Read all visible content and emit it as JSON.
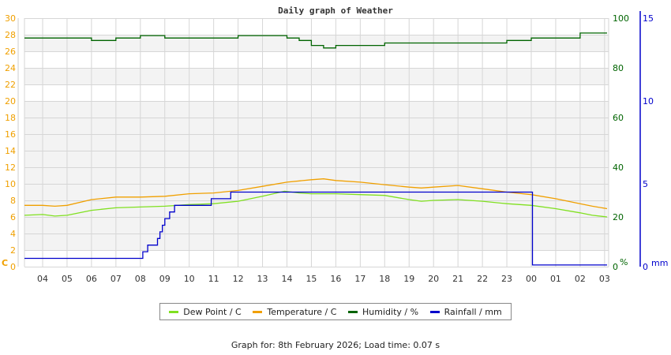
{
  "chart_data": {
    "type": "line",
    "title": "Daily graph of Weather",
    "x_tick_labels": [
      "04",
      "05",
      "06",
      "07",
      "08",
      "09",
      "10",
      "11",
      "12",
      "13",
      "14",
      "15",
      "16",
      "17",
      "18",
      "19",
      "20",
      "21",
      "22",
      "23",
      "00",
      "01",
      "02",
      "03"
    ],
    "axes": {
      "left": {
        "label": "C",
        "ticks": [
          0,
          2,
          4,
          6,
          8,
          10,
          12,
          14,
          16,
          18,
          20,
          22,
          24,
          26,
          28,
          30
        ],
        "range": [
          0,
          30
        ],
        "color": "#f0a000"
      },
      "right_humidity": {
        "label": "%",
        "ticks": [
          0,
          20,
          40,
          60,
          80,
          100
        ],
        "range": [
          0,
          100
        ],
        "color": "#006400"
      },
      "right_rain": {
        "label": "mm",
        "ticks": [
          0,
          5,
          10,
          15
        ],
        "range": [
          0,
          15
        ],
        "color": "#0000cc"
      }
    },
    "grid": true,
    "legend_position": "bottom",
    "series": [
      {
        "name": "Dew Point / C",
        "color": "#80e020",
        "x": [
          3.3,
          4,
          4.5,
          5,
          6,
          7,
          8,
          9,
          10,
          11,
          12,
          13,
          13.9,
          14.5,
          15,
          16,
          17,
          18,
          19,
          19.5,
          20,
          21,
          22,
          23,
          0,
          1,
          2,
          2.5,
          3.3
        ],
        "values": [
          6.2,
          6.3,
          6.1,
          6.2,
          6.8,
          7.1,
          7.2,
          7.3,
          7.5,
          7.6,
          7.9,
          8.5,
          9.1,
          8.9,
          8.8,
          8.8,
          8.7,
          8.6,
          8.1,
          7.9,
          8.0,
          8.1,
          7.9,
          7.6,
          7.4,
          7.0,
          6.5,
          6.2,
          6.0
        ]
      },
      {
        "name": "Temperature / C",
        "color": "#f0a000",
        "x": [
          3.3,
          4,
          4.5,
          5,
          6,
          7,
          8,
          9,
          10,
          11,
          12,
          13,
          14,
          15,
          15.5,
          16,
          17,
          18,
          19,
          19.5,
          20,
          21,
          22,
          23,
          0,
          1,
          2,
          2.5,
          3.3
        ],
        "values": [
          7.4,
          7.4,
          7.3,
          7.4,
          8.1,
          8.4,
          8.4,
          8.5,
          8.8,
          8.9,
          9.2,
          9.7,
          10.2,
          10.5,
          10.6,
          10.4,
          10.2,
          9.9,
          9.6,
          9.5,
          9.6,
          9.8,
          9.4,
          9.0,
          8.7,
          8.2,
          7.6,
          7.3,
          7.0
        ]
      },
      {
        "name": "Humidity / %",
        "color": "#006400",
        "x": [
          3.3,
          4,
          5,
          6,
          6.5,
          7,
          8,
          9,
          9.5,
          10,
          11,
          12,
          13,
          14,
          14.5,
          15,
          15.5,
          16,
          17,
          18,
          19,
          19.5,
          20,
          21,
          22,
          23,
          0,
          1,
          2,
          3.3
        ],
        "values": [
          92,
          92,
          92,
          91,
          91,
          92,
          93,
          92,
          92,
          92,
          92,
          93,
          93,
          92,
          91,
          89,
          88,
          89,
          89,
          90,
          90,
          90,
          90,
          90,
          90,
          91,
          92,
          92,
          94,
          94
        ]
      },
      {
        "name": "Rainfall / mm",
        "color": "#0000cc",
        "x": [
          3.3,
          8.0,
          8.1,
          8.3,
          8.5,
          8.7,
          8.8,
          8.9,
          9.0,
          9.2,
          9.4,
          10.9,
          11.7,
          0.0,
          0.05,
          3.3
        ],
        "values": [
          0.5,
          0.5,
          0.9,
          1.3,
          1.3,
          1.7,
          2.1,
          2.5,
          2.9,
          3.3,
          3.7,
          4.1,
          4.5,
          4.5,
          0.1,
          0.1
        ]
      }
    ]
  },
  "legend": {
    "items": [
      {
        "label": "Dew Point / C",
        "color": "#80e020"
      },
      {
        "label": "Temperature / C",
        "color": "#f0a000"
      },
      {
        "label": "Humidity / %",
        "color": "#006400"
      },
      {
        "label": "Rainfall / mm",
        "color": "#0000cc"
      }
    ]
  },
  "footer": {
    "text": "Graph for: 8th February 2026; Load time: 0.07 s"
  }
}
